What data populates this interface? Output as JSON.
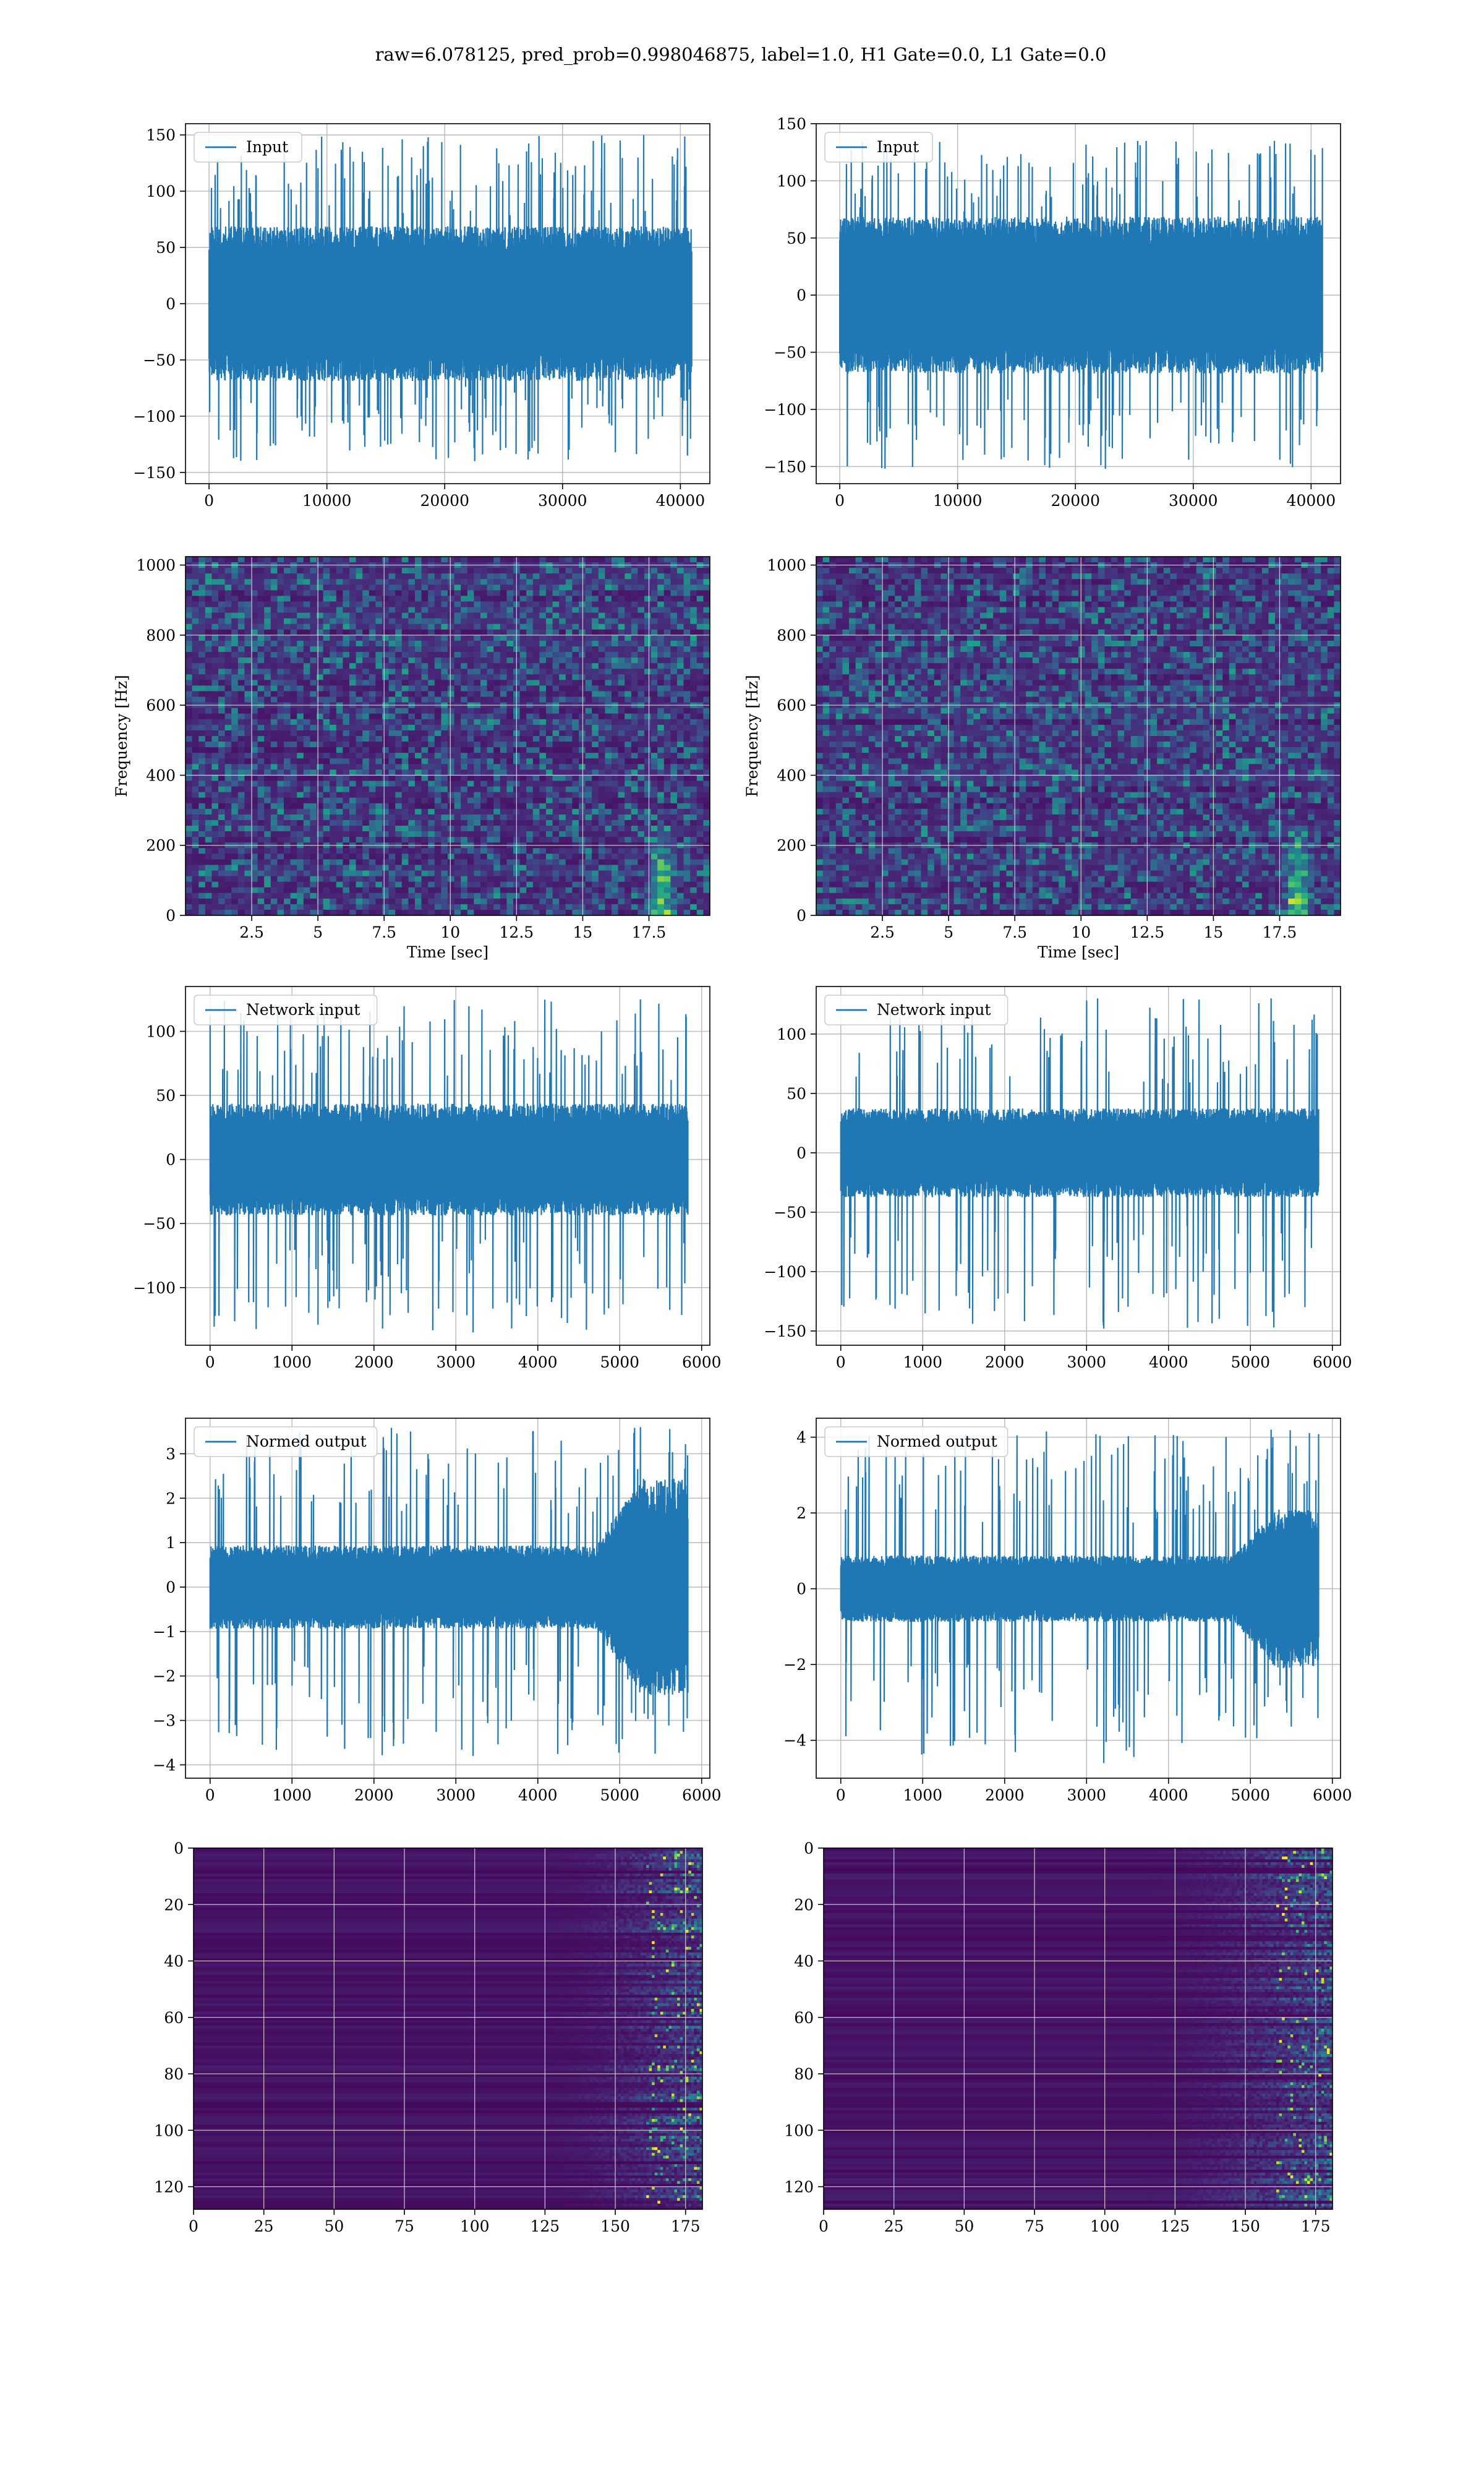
{
  "suptitle": "raw=6.078125, pred_prob=0.998046875, label=1.0, H1 Gate=0.0, L1 Gate=0.0",
  "colors": {
    "series": "#1f77b4",
    "grid": "#b0b0b0",
    "viridis_low": "#440154",
    "viridis_mid": "#21918c",
    "viridis_high": "#fde725"
  },
  "chart_data": [
    {
      "id": "input-h1",
      "type": "line",
      "legend": "Input",
      "legend_loc": "upper-left",
      "grid": true,
      "xlim": [
        -2000,
        42500
      ],
      "ylim": [
        -160,
        160
      ],
      "xticks": [
        0,
        10000,
        20000,
        30000,
        40000
      ],
      "yticks": [
        -150,
        -100,
        -50,
        0,
        50,
        100,
        150
      ],
      "x_range": [
        0,
        40960
      ],
      "series": [
        {
          "values": {
            "n": 1600,
            "core": 55,
            "spike_max": 150,
            "spike_min": -140,
            "seed": 11
          }
        }
      ]
    },
    {
      "id": "input-l1",
      "type": "line",
      "legend": "Input",
      "legend_loc": "upper-left",
      "grid": true,
      "xlim": [
        -2000,
        42500
      ],
      "ylim": [
        -165,
        150
      ],
      "xticks": [
        0,
        10000,
        20000,
        30000,
        40000
      ],
      "yticks": [
        -150,
        -100,
        -50,
        0,
        50,
        100,
        150
      ],
      "x_range": [
        0,
        40960
      ],
      "series": [
        {
          "values": {
            "n": 1600,
            "core": 55,
            "spike_max": 135,
            "spike_min": -152,
            "seed": 23
          }
        }
      ]
    },
    {
      "id": "spec-h1",
      "type": "heatmap",
      "grid": true,
      "xlim": [
        0,
        19.8
      ],
      "ylim": [
        0,
        1024
      ],
      "xticks": [
        2.5,
        5.0,
        7.5,
        10.0,
        12.5,
        15.0,
        17.5
      ],
      "yticks": [
        0,
        200,
        400,
        600,
        800,
        1000
      ],
      "xlabel": "Time [sec]",
      "ylabel": "Frequency [Hz]",
      "cols": 80,
      "rows": 64,
      "seed": 5,
      "event_x": 18.0
    },
    {
      "id": "spec-l1",
      "type": "heatmap",
      "grid": true,
      "xlim": [
        0,
        19.8
      ],
      "ylim": [
        0,
        1024
      ],
      "xticks": [
        2.5,
        5.0,
        7.5,
        10.0,
        12.5,
        15.0,
        17.5
      ],
      "yticks": [
        0,
        200,
        400,
        600,
        800,
        1000
      ],
      "xlabel": "Time [sec]",
      "ylabel": "Frequency [Hz]",
      "cols": 80,
      "rows": 64,
      "seed": 9,
      "event_x": 18.2
    },
    {
      "id": "net-h1",
      "type": "line",
      "legend": "Network input",
      "legend_loc": "upper-left",
      "grid": true,
      "xlim": [
        -300,
        6100
      ],
      "ylim": [
        -145,
        135
      ],
      "xticks": [
        0,
        1000,
        2000,
        3000,
        4000,
        5000,
        6000
      ],
      "yticks": [
        -100,
        -50,
        0,
        50,
        100
      ],
      "x_range": [
        0,
        5832
      ],
      "series": [
        {
          "values": {
            "n": 1400,
            "core": 35,
            "spike_max": 125,
            "spike_min": -135,
            "seed": 31
          }
        }
      ]
    },
    {
      "id": "net-l1",
      "type": "line",
      "legend": "Network input",
      "legend_loc": "upper-left",
      "grid": true,
      "xlim": [
        -300,
        6100
      ],
      "ylim": [
        -162,
        140
      ],
      "xticks": [
        0,
        1000,
        2000,
        3000,
        4000,
        5000,
        6000
      ],
      "yticks": [
        -150,
        -100,
        -50,
        0,
        50,
        100
      ],
      "x_range": [
        0,
        5832
      ],
      "series": [
        {
          "values": {
            "n": 1400,
            "core": 30,
            "spike_max": 130,
            "spike_min": -148,
            "seed": 37
          }
        }
      ]
    },
    {
      "id": "norm-h1",
      "type": "line",
      "legend": "Normed output",
      "legend_loc": "upper-left",
      "grid": true,
      "xlim": [
        -300,
        6100
      ],
      "ylim": [
        -4.3,
        3.8
      ],
      "xticks": [
        0,
        1000,
        2000,
        3000,
        4000,
        5000,
        6000
      ],
      "yticks": [
        -4,
        -3,
        -2,
        -1,
        0,
        1,
        2,
        3
      ],
      "x_range": [
        0,
        5832
      ],
      "series": [
        {
          "values": {
            "n": 1400,
            "core": 0.75,
            "spike_max": 3.6,
            "spike_min": -3.8,
            "seed": 41,
            "burst_start": 4700,
            "burst_gain": 2.6
          }
        }
      ]
    },
    {
      "id": "norm-l1",
      "type": "line",
      "legend": "Normed output",
      "legend_loc": "upper-left",
      "grid": true,
      "xlim": [
        -300,
        6100
      ],
      "ylim": [
        -5.0,
        4.5
      ],
      "xticks": [
        0,
        1000,
        2000,
        3000,
        4000,
        5000,
        6000
      ],
      "yticks": [
        -4,
        -2,
        0,
        2,
        4
      ],
      "x_range": [
        0,
        5832
      ],
      "series": [
        {
          "values": {
            "n": 1400,
            "core": 0.7,
            "spike_max": 4.2,
            "spike_min": -4.6,
            "seed": 43,
            "burst_start": 4800,
            "burst_gain": 2.4
          }
        }
      ]
    },
    {
      "id": "feat-h1",
      "type": "heatmap",
      "grid": true,
      "inverted_y": true,
      "xlim": [
        0,
        181
      ],
      "ylim": [
        128,
        0
      ],
      "xticks": [
        0,
        25,
        50,
        75,
        100,
        125,
        150,
        175
      ],
      "yticks": [
        0,
        20,
        40,
        60,
        80,
        100,
        120
      ],
      "cols": 181,
      "rows": 128,
      "seed": 3,
      "onset": 125
    },
    {
      "id": "feat-l1",
      "type": "heatmap",
      "grid": true,
      "inverted_y": true,
      "xlim": [
        0,
        181
      ],
      "ylim": [
        128,
        0
      ],
      "xticks": [
        0,
        25,
        50,
        75,
        100,
        125,
        150,
        175
      ],
      "yticks": [
        0,
        20,
        40,
        60,
        80,
        100,
        120
      ],
      "cols": 181,
      "rows": 128,
      "seed": 7,
      "onset": 115
    }
  ]
}
